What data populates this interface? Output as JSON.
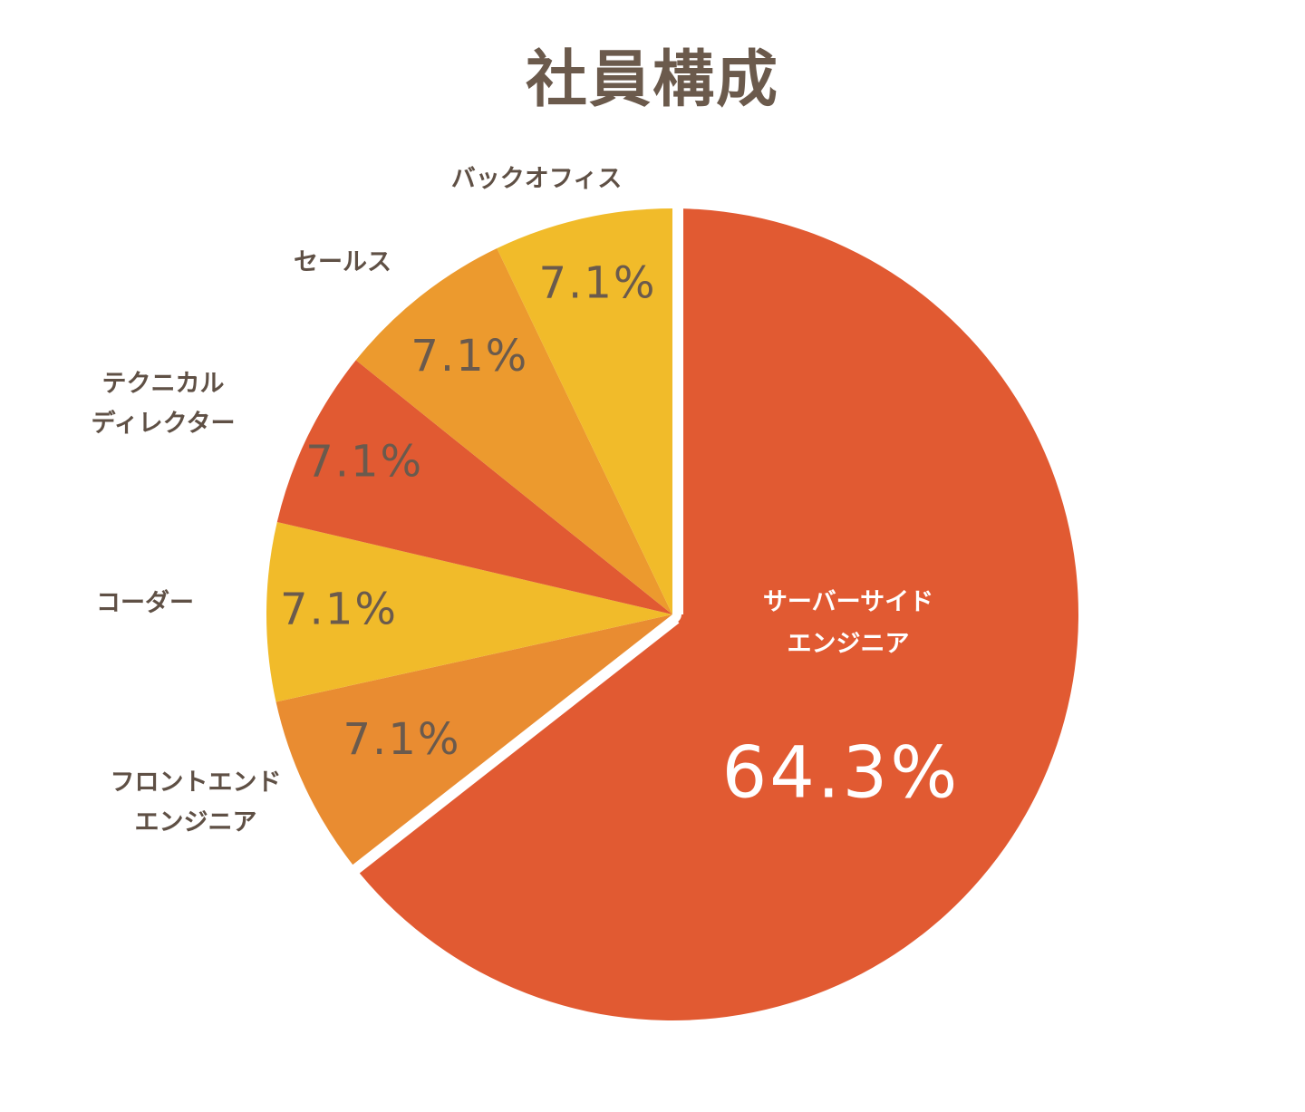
{
  "chart_data": {
    "type": "pie",
    "title": "社員構成",
    "slices": [
      {
        "label_lines": [
          "サーバーサイド",
          "エンジニア"
        ],
        "value": 64.3,
        "value_label": "64.3%",
        "color": "#e15a32"
      },
      {
        "label_lines": [
          "フロントエンド",
          "エンジニア"
        ],
        "value": 7.1,
        "value_label": "7.1%",
        "color": "#e98c31"
      },
      {
        "label_lines": [
          "コーダー"
        ],
        "value": 7.1,
        "value_label": "7.1%",
        "color": "#f1bb2a"
      },
      {
        "label_lines": [
          "テクニカル",
          "ディレクター"
        ],
        "value": 7.1,
        "value_label": "7.1%",
        "color": "#e15a32"
      },
      {
        "label_lines": [
          "セールス"
        ],
        "value": 7.1,
        "value_label": "7.1%",
        "color": "#ec9a2e"
      },
      {
        "label_lines": [
          "バックオフィス"
        ],
        "value": 7.1,
        "value_label": "7.1%",
        "color": "#f1bb2a"
      }
    ],
    "start": "top",
    "direction": "clockwise",
    "legend": "none",
    "text_color": "#6b5a4c"
  }
}
